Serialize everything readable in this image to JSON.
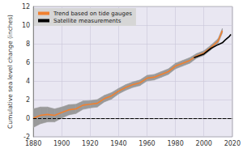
{
  "chart_data": {
    "type": "line",
    "y_label": "Cumulative sea level change (inches)",
    "xlim": [
      1880,
      2020
    ],
    "xticks": [
      1880,
      1900,
      1920,
      1940,
      1960,
      1980,
      2000,
      2020
    ],
    "ylim": [
      -2,
      12
    ],
    "yticks": [
      -2,
      0,
      2,
      4,
      6,
      8,
      10,
      12
    ],
    "grid": true,
    "legend": "upper left",
    "hline": 0,
    "series": [
      {
        "name": "Trend based on tide gauges",
        "color": "#f08030",
        "x": [
          1880,
          1885,
          1890,
          1895,
          1900,
          1905,
          1910,
          1915,
          1920,
          1925,
          1930,
          1935,
          1940,
          1945,
          1950,
          1955,
          1960,
          1965,
          1970,
          1975,
          1980,
          1985,
          1990,
          1995,
          2000,
          2005,
          2010,
          2013
        ],
        "values": [
          0.0,
          0.3,
          0.4,
          0.3,
          0.6,
          0.9,
          1.0,
          1.4,
          1.5,
          1.6,
          2.1,
          2.4,
          2.9,
          3.3,
          3.6,
          3.8,
          4.3,
          4.4,
          4.7,
          5.0,
          5.6,
          5.9,
          6.2,
          6.7,
          7.0,
          7.6,
          8.3,
          9.4
        ],
        "error": [
          1.0,
          0.9,
          0.8,
          0.7,
          0.6,
          0.55,
          0.5,
          0.45,
          0.4,
          0.4,
          0.35,
          0.35,
          0.3,
          0.3,
          0.3,
          0.3,
          0.3,
          0.3,
          0.3,
          0.3,
          0.3,
          0.3,
          0.3,
          0.25,
          0.25,
          0.25,
          0.25,
          0.25
        ]
      },
      {
        "name": "Satellite measurements",
        "color": "#000000",
        "x": [
          1993,
          1995,
          2000,
          2005,
          2010,
          2013,
          2015,
          2018,
          2019
        ],
        "values": [
          6.5,
          6.6,
          6.9,
          7.5,
          7.9,
          8.1,
          8.4,
          8.8,
          9.0
        ]
      }
    ]
  }
}
